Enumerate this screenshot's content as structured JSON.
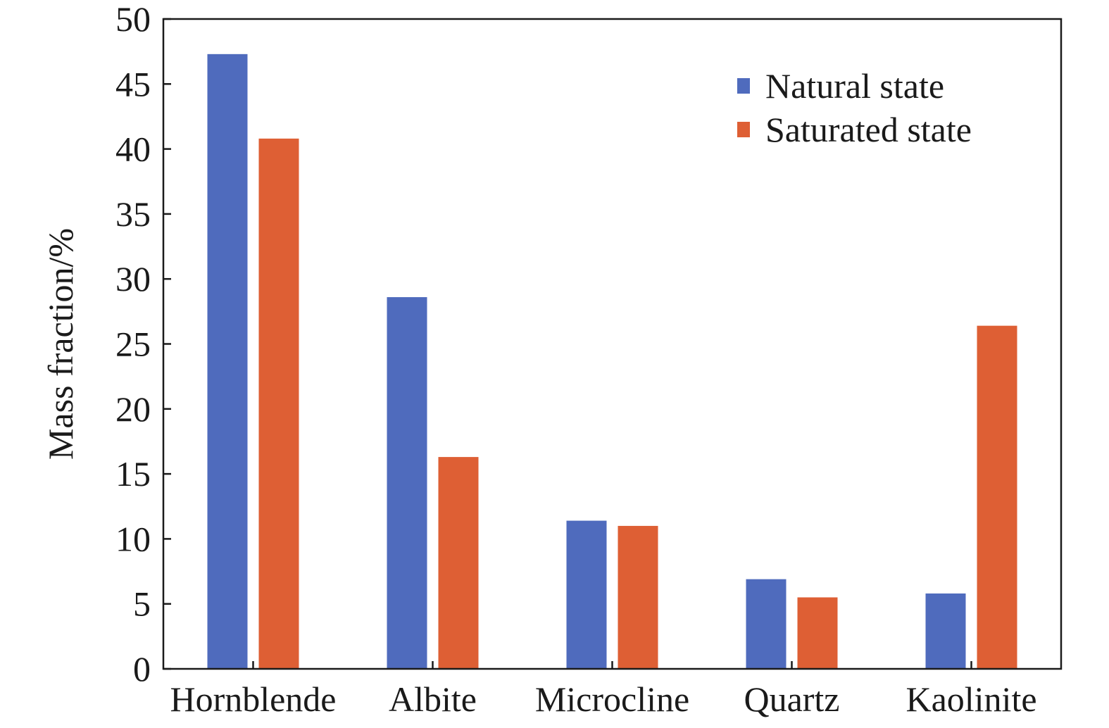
{
  "chart_data": {
    "type": "bar",
    "categories": [
      "Hornblende",
      "Albite",
      "Microcline",
      "Quartz",
      "Kaolinite"
    ],
    "series": [
      {
        "name": "Natural state",
        "values": [
          47.3,
          28.6,
          11.4,
          6.9,
          5.8
        ],
        "color": "#4f6bbd"
      },
      {
        "name": "Saturated state",
        "values": [
          40.8,
          16.3,
          11.0,
          5.5,
          26.4
        ],
        "color": "#de5f34"
      }
    ],
    "xlabel": "",
    "ylabel": "Mass fraction/%",
    "ylim": [
      0,
      50
    ],
    "yticks": [
      0,
      5,
      10,
      15,
      20,
      25,
      30,
      35,
      40,
      45,
      50
    ],
    "grid": false,
    "legend_position": "top-right"
  }
}
